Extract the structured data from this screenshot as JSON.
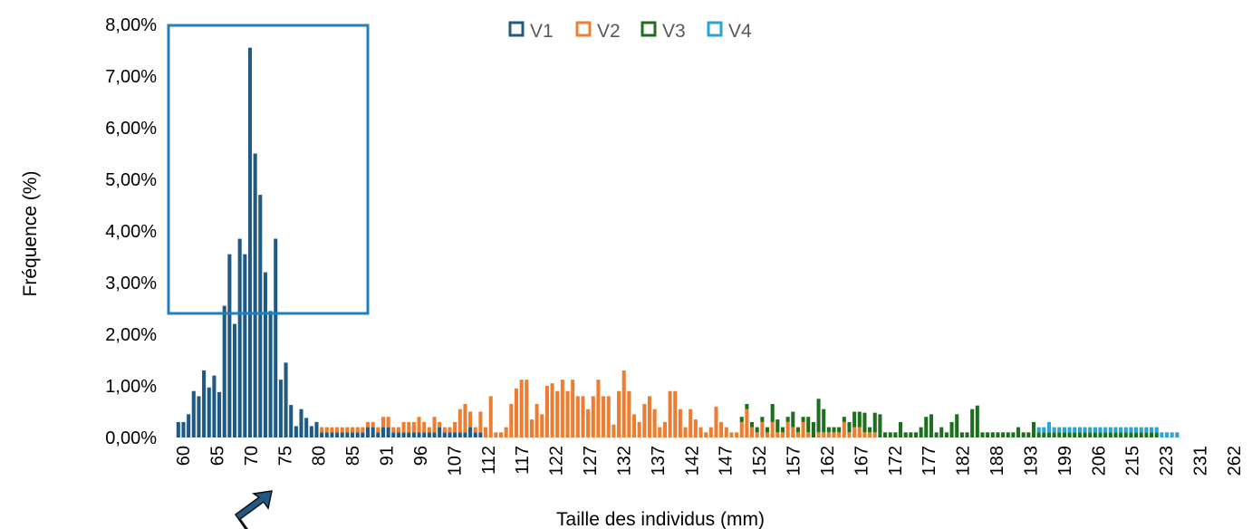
{
  "colors": {
    "V1": "#1f5a85",
    "V2": "#ed7d31",
    "V3": "#1f6e1f",
    "V4": "#2aa3d6",
    "highlight": "#1f7fbf"
  },
  "chart_data": {
    "type": "bar",
    "xlabel": "Taille des individus (mm)",
    "ylabel": "Fréquence (%)",
    "ylim": [
      0,
      8
    ],
    "yticks": [
      "0,00%",
      "1,00%",
      "2,00%",
      "3,00%",
      "4,00%",
      "5,00%",
      "6,00%",
      "7,00%",
      "8,00%"
    ],
    "xticks": [
      "60",
      "65",
      "70",
      "75",
      "80",
      "85",
      "91",
      "96",
      "107",
      "112",
      "117",
      "122",
      "127",
      "132",
      "137",
      "142",
      "147",
      "152",
      "157",
      "162",
      "167",
      "172",
      "177",
      "182",
      "188",
      "193",
      "199",
      "206",
      "215",
      "223",
      "231",
      "262"
    ],
    "legend": [
      "V1",
      "V2",
      "V3",
      "V4"
    ],
    "legend_position": "top",
    "annotations": [
      "box around sizes 60–87 (V1 cohort)",
      "arrow pointing up at the boxed cohort"
    ],
    "series": [
      {
        "name": "V1",
        "values": [
          0.3,
          0.3,
          0.45,
          0.9,
          0.8,
          1.3,
          0.97,
          1.2,
          0.88,
          2.55,
          3.55,
          2.2,
          3.85,
          3.55,
          7.55,
          5.5,
          4.7,
          3.2,
          2.45,
          3.85,
          1.12,
          1.45,
          0.63,
          0.22,
          0.55,
          0.38,
          0.22,
          0.3,
          0.1,
          0.1,
          0.1,
          0.1,
          0.1,
          0.1,
          0.1,
          0.1,
          0.1,
          0.2,
          0.2,
          0.1,
          0.2,
          0.2,
          0.1,
          0.1,
          0.1,
          0.1,
          0.1,
          0.1,
          0.1,
          0.1,
          0.1,
          0.2,
          0.1,
          0.1,
          0.1,
          0.1,
          0.1,
          0.2,
          0.1,
          0.1,
          0,
          0,
          0,
          0,
          0,
          0,
          0,
          0,
          0,
          0,
          0,
          0,
          0,
          0,
          0,
          0,
          0,
          0,
          0,
          0,
          0,
          0,
          0,
          0,
          0,
          0,
          0,
          0,
          0,
          0,
          0,
          0,
          0,
          0,
          0,
          0,
          0,
          0,
          0,
          0,
          0,
          0,
          0,
          0,
          0,
          0,
          0,
          0,
          0,
          0,
          0,
          0,
          0,
          0,
          0,
          0,
          0,
          0,
          0,
          0,
          0,
          0,
          0,
          0,
          0,
          0,
          0,
          0,
          0,
          0,
          0,
          0,
          0,
          0,
          0,
          0,
          0,
          0,
          0,
          0,
          0,
          0,
          0,
          0,
          0,
          0,
          0,
          0,
          0,
          0,
          0,
          0,
          0,
          0,
          0,
          0,
          0,
          0,
          0,
          0,
          0,
          0,
          0,
          0,
          0,
          0,
          0,
          0,
          0,
          0,
          0,
          0,
          0,
          0,
          0,
          0,
          0,
          0,
          0,
          0,
          0,
          0,
          0,
          0,
          0,
          0,
          0,
          0,
          0,
          0,
          0,
          0,
          0,
          0,
          0,
          0,
          0,
          0,
          0,
          0,
          0,
          0,
          0,
          0,
          0,
          0,
          0,
          0
        ]
      },
      {
        "name": "V2",
        "values": [
          0,
          0,
          0,
          0,
          0,
          0,
          0,
          0,
          0,
          0,
          0,
          0,
          0,
          0,
          0,
          0,
          0,
          0,
          0,
          0,
          0,
          0,
          0,
          0,
          0,
          0,
          0,
          0,
          0.1,
          0.1,
          0.1,
          0.1,
          0.1,
          0.1,
          0.1,
          0.1,
          0.1,
          0.1,
          0.1,
          0.1,
          0.2,
          0.2,
          0.1,
          0.1,
          0.2,
          0.2,
          0.2,
          0.3,
          0.2,
          0.1,
          0.3,
          0.1,
          0.1,
          0.1,
          0.2,
          0.45,
          0.55,
          0.3,
          0.1,
          0.4,
          0.2,
          0.8,
          0.1,
          0.1,
          0.2,
          0.65,
          0.95,
          1.12,
          1.12,
          0.35,
          0.65,
          0.45,
          1,
          1.05,
          0.9,
          1.12,
          0.9,
          1.12,
          0.8,
          0.8,
          0.55,
          0.8,
          1.12,
          0.8,
          0.8,
          0.25,
          0.9,
          1.3,
          0.9,
          0.45,
          0.3,
          0.65,
          0.8,
          0.55,
          0.2,
          0.3,
          0.9,
          0.9,
          0.55,
          0.2,
          0.55,
          0.35,
          0.2,
          0.1,
          0.2,
          0.6,
          0.3,
          0.2,
          0.1,
          0.1,
          0.3,
          0.55,
          0.2,
          0.1,
          0.3,
          0.1,
          0.3,
          0.1,
          0.1,
          0.3,
          0.2,
          0.1,
          0.3,
          0.1,
          0,
          0.1,
          0.1,
          0.1,
          0.1,
          0.1,
          0.3,
          0.1,
          0.2,
          0.2,
          0.1,
          0.1,
          0.1,
          0,
          0,
          0,
          0,
          0,
          0,
          0,
          0,
          0,
          0,
          0,
          0,
          0,
          0,
          0,
          0,
          0,
          0,
          0,
          0,
          0,
          0,
          0,
          0,
          0,
          0,
          0,
          0,
          0,
          0,
          0,
          0,
          0,
          0,
          0,
          0,
          0,
          0,
          0,
          0,
          0,
          0,
          0,
          0,
          0,
          0,
          0,
          0,
          0,
          0,
          0,
          0,
          0,
          0,
          0,
          0,
          0,
          0,
          0,
          0,
          0,
          0,
          0,
          0,
          0,
          0,
          0,
          0,
          0,
          0,
          0,
          0,
          0,
          0,
          0,
          0,
          0
        ]
      },
      {
        "name": "V3",
        "values": [
          0,
          0,
          0,
          0,
          0,
          0,
          0,
          0,
          0,
          0,
          0,
          0,
          0,
          0,
          0,
          0,
          0,
          0,
          0,
          0,
          0,
          0,
          0,
          0,
          0,
          0,
          0,
          0,
          0,
          0,
          0,
          0,
          0,
          0,
          0,
          0,
          0,
          0,
          0,
          0,
          0,
          0,
          0,
          0,
          0,
          0,
          0,
          0,
          0,
          0,
          0,
          0,
          0,
          0,
          0,
          0,
          0,
          0,
          0,
          0,
          0,
          0,
          0,
          0,
          0,
          0,
          0,
          0,
          0,
          0,
          0,
          0,
          0,
          0,
          0,
          0,
          0,
          0,
          0,
          0,
          0,
          0,
          0,
          0,
          0,
          0,
          0,
          0,
          0,
          0,
          0,
          0,
          0,
          0,
          0,
          0,
          0,
          0,
          0,
          0,
          0,
          0,
          0,
          0,
          0,
          0,
          0,
          0,
          0,
          0,
          0.1,
          0.1,
          0.1,
          0.1,
          0.1,
          0.1,
          0.35,
          0.25,
          0.1,
          0.1,
          0.3,
          0.1,
          0.1,
          0.3,
          0.3,
          0.65,
          0.45,
          0.1,
          0.1,
          0.1,
          0.1,
          0.2,
          0.3,
          0.3,
          0.38,
          0.1,
          0.38,
          0.45,
          0.1,
          0.1,
          0.1,
          0.3,
          0.1,
          0.1,
          0.1,
          0.2,
          0.4,
          0.45,
          0.1,
          0.2,
          0.1,
          0.3,
          0.45,
          0.1,
          0.1,
          0.55,
          0.62,
          0.1,
          0.1,
          0.1,
          0.1,
          0.1,
          0.1,
          0.1,
          0.2,
          0.1,
          0.1,
          0.3,
          0.1,
          0.1,
          0.1,
          0.1,
          0.1,
          0.1,
          0.1,
          0.1,
          0.1,
          0.1,
          0.1,
          0.1,
          0.1,
          0.1,
          0.1,
          0.1,
          0.1,
          0.1,
          0.1,
          0.1,
          0.1,
          0.1,
          0.1,
          0.1
        ]
      },
      {
        "name": "V4",
        "values": [
          0,
          0,
          0,
          0,
          0,
          0,
          0,
          0,
          0,
          0,
          0,
          0,
          0,
          0,
          0,
          0,
          0,
          0,
          0,
          0,
          0,
          0,
          0,
          0,
          0,
          0,
          0,
          0,
          0,
          0,
          0,
          0,
          0,
          0,
          0,
          0,
          0,
          0,
          0,
          0,
          0,
          0,
          0,
          0,
          0,
          0,
          0,
          0,
          0,
          0,
          0,
          0,
          0,
          0,
          0,
          0,
          0,
          0,
          0,
          0,
          0,
          0,
          0,
          0,
          0,
          0,
          0,
          0,
          0,
          0,
          0,
          0,
          0,
          0,
          0,
          0,
          0,
          0,
          0,
          0,
          0,
          0,
          0,
          0,
          0,
          0,
          0,
          0,
          0,
          0,
          0,
          0,
          0,
          0,
          0,
          0,
          0,
          0,
          0,
          0,
          0,
          0,
          0,
          0,
          0,
          0,
          0,
          0,
          0,
          0,
          0,
          0,
          0,
          0,
          0,
          0,
          0,
          0,
          0,
          0,
          0,
          0,
          0,
          0,
          0,
          0,
          0,
          0,
          0,
          0,
          0,
          0,
          0,
          0,
          0,
          0,
          0,
          0,
          0,
          0,
          0,
          0,
          0,
          0,
          0,
          0,
          0,
          0,
          0,
          0,
          0,
          0,
          0,
          0,
          0,
          0,
          0,
          0,
          0,
          0,
          0,
          0,
          0,
          0,
          0,
          0,
          0,
          0,
          0.1,
          0.1,
          0.2,
          0.1,
          0.1,
          0.1,
          0.1,
          0.1,
          0.1,
          0.1,
          0.1,
          0.1,
          0.1,
          0.1,
          0.1,
          0.1,
          0.1,
          0.1,
          0.1,
          0.1,
          0.1,
          0.1,
          0.1,
          0.1,
          0.1,
          0.1,
          0.1,
          0.1
        ]
      }
    ]
  }
}
